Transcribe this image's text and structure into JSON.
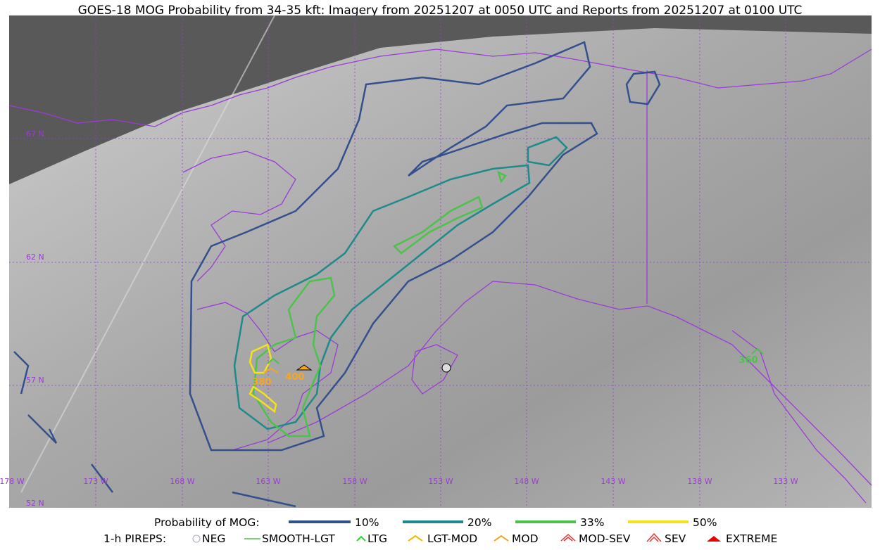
{
  "title": "GOES-18 MOG Probability from 34-35 kft: Imagery from 20251207 at 0050 UTC and Reports from 20251207 at 0100 UTC",
  "map": {
    "latitude_labels": [
      "67 N",
      "62 N",
      "57 N",
      "52 N"
    ],
    "longitude_labels": [
      "178 W",
      "173 W",
      "168 W",
      "163 W",
      "158 W",
      "153 W",
      "148 W",
      "143 W",
      "138 W",
      "133 W"
    ],
    "report_labels": [
      "380",
      "400",
      "360"
    ]
  },
  "legend": {
    "probability_title": "Probability of MOG:",
    "probability_levels": [
      "10%",
      "20%",
      "33%",
      "50%"
    ],
    "pireps_title": "1-h PIREPS:",
    "pirep_types": [
      "NEG",
      "SMOOTH-LGT",
      "LTG",
      "LGT-MOD",
      "MOD",
      "MOD-SEV",
      "SEV",
      "EXTREME"
    ]
  }
}
